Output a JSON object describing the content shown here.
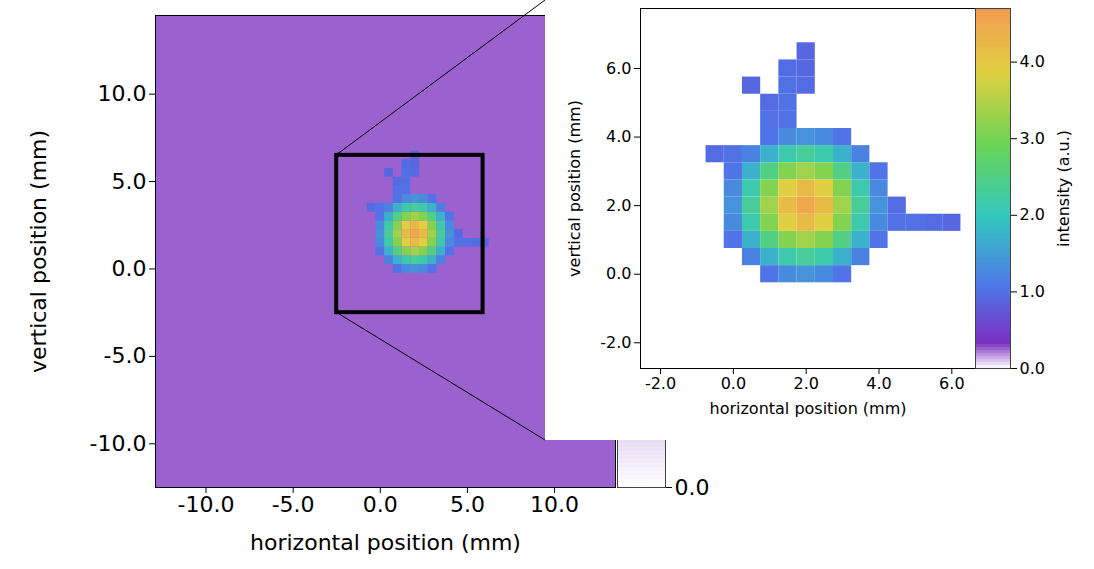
{
  "chart_data": [
    {
      "type": "heatmap",
      "xlabel": "horizontal position (mm)",
      "ylabel": "vertical position (mm)",
      "xlim": [
        -12.9,
        13.5
      ],
      "ylim": [
        -12.5,
        14.5
      ],
      "xticks": [
        {
          "value": -10,
          "label": "-10.0"
        },
        {
          "value": -5,
          "label": "-5.0"
        },
        {
          "value": 0,
          "label": "0.0"
        },
        {
          "value": 5,
          "label": "5.0"
        },
        {
          "value": 10,
          "label": "10.0"
        }
      ],
      "yticks": [
        {
          "value": -10,
          "label": "-10.0"
        },
        {
          "value": -5,
          "label": "-5.0"
        },
        {
          "value": 0,
          "label": "0.0"
        },
        {
          "value": 5,
          "label": "5.0"
        },
        {
          "value": 10,
          "label": "10.0"
        }
      ],
      "background_value": 0.25,
      "zoom_box": {
        "x": [
          -2.5,
          5.9
        ],
        "y": [
          -2.5,
          6.5
        ]
      },
      "colorbar": {
        "range": [
          0,
          0.6
        ],
        "ticks": [
          {
            "value": 0,
            "label": "0.0"
          }
        ]
      }
    },
    {
      "type": "heatmap",
      "xlabel": "horizontal position (mm)",
      "ylabel": "vertical position (mm)",
      "xlim": [
        -2.55,
        6.65
      ],
      "ylim": [
        -2.75,
        7.75
      ],
      "xticks": [
        {
          "value": -2,
          "label": "-2.0"
        },
        {
          "value": 0,
          "label": "0.0"
        },
        {
          "value": 2,
          "label": "2.0"
        },
        {
          "value": 4,
          "label": "4.0"
        },
        {
          "value": 6,
          "label": "6.0"
        }
      ],
      "yticks": [
        {
          "value": -2,
          "label": "-2.0"
        },
        {
          "value": 0,
          "label": "0.0"
        },
        {
          "value": 2,
          "label": "2.0"
        },
        {
          "value": 4,
          "label": "4.0"
        },
        {
          "value": 6,
          "label": "6.0"
        }
      ],
      "cell_size": 0.5,
      "x": [
        -0.5,
        0.0,
        0.5,
        1.0,
        1.5,
        2.0,
        2.5,
        3.0,
        3.5,
        4.0,
        4.5,
        5.0,
        5.5,
        6.0
      ],
      "y": [
        0.0,
        0.5,
        1.0,
        1.5,
        2.0,
        2.5,
        3.0,
        3.5,
        4.0,
        4.5,
        5.0,
        5.5,
        6.0,
        6.5
      ],
      "z": [
        [
          null,
          null,
          null,
          1.02,
          1.28,
          1.38,
          1.28,
          1.02,
          null,
          null,
          null,
          null,
          null,
          null
        ],
        [
          null,
          null,
          1.19,
          1.72,
          2.15,
          2.31,
          2.15,
          1.72,
          1.19,
          null,
          null,
          null,
          null,
          null
        ],
        [
          null,
          1.02,
          1.72,
          2.49,
          3.11,
          3.35,
          3.11,
          2.49,
          1.72,
          1.02,
          null,
          null,
          null,
          null
        ],
        [
          null,
          1.28,
          2.15,
          3.11,
          3.88,
          4.18,
          3.88,
          3.11,
          2.15,
          1.28,
          1.0,
          1.0,
          0.95,
          0.9
        ],
        [
          null,
          1.38,
          2.31,
          3.35,
          4.18,
          4.5,
          4.18,
          3.35,
          2.31,
          1.38,
          0.95,
          null,
          null,
          null
        ],
        [
          null,
          1.28,
          2.15,
          3.11,
          3.88,
          4.18,
          3.88,
          3.11,
          2.15,
          1.28,
          null,
          null,
          null,
          null
        ],
        [
          null,
          1.02,
          1.72,
          2.49,
          3.11,
          3.35,
          3.11,
          2.49,
          1.72,
          1.02,
          null,
          null,
          null,
          null
        ],
        [
          0.95,
          1.0,
          1.19,
          1.72,
          2.15,
          2.31,
          2.15,
          1.72,
          1.19,
          null,
          null,
          null,
          null,
          null
        ],
        [
          null,
          null,
          null,
          1.02,
          1.28,
          1.38,
          1.28,
          1.02,
          null,
          null,
          null,
          null,
          null,
          null
        ],
        [
          null,
          null,
          null,
          1.0,
          1.0,
          null,
          null,
          null,
          null,
          null,
          null,
          null,
          null,
          null
        ],
        [
          null,
          null,
          null,
          0.95,
          1.0,
          null,
          null,
          null,
          null,
          null,
          null,
          null,
          null,
          null
        ],
        [
          null,
          null,
          0.9,
          null,
          1.0,
          0.95,
          null,
          null,
          null,
          null,
          null,
          null,
          null,
          null
        ],
        [
          null,
          null,
          null,
          null,
          0.95,
          0.9,
          null,
          null,
          null,
          null,
          null,
          null,
          null,
          null
        ],
        [
          null,
          null,
          null,
          null,
          null,
          0.9,
          null,
          null,
          null,
          null,
          null,
          null,
          null,
          null
        ]
      ],
      "colorbar": {
        "label": "intensity (a.u.)",
        "range": [
          0,
          4.7
        ],
        "ticks": [
          {
            "value": 0,
            "label": "0.0"
          },
          {
            "value": 1,
            "label": "1.0"
          },
          {
            "value": 2,
            "label": "2.0"
          },
          {
            "value": 3,
            "label": "3.0"
          },
          {
            "value": 4,
            "label": "4.0"
          }
        ]
      }
    }
  ]
}
